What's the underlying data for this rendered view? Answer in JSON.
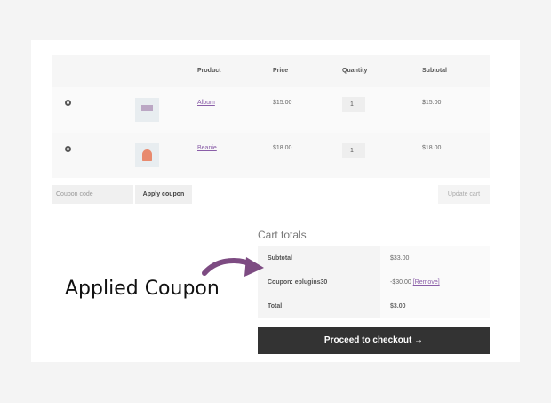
{
  "cart": {
    "headers": [
      "Product",
      "Price",
      "Quantity",
      "Subtotal"
    ],
    "items": [
      {
        "name": "Album",
        "price": "$15.00",
        "qty": "1",
        "subtotal": "$15.00"
      },
      {
        "name": "Beanie",
        "price": "$18.00",
        "qty": "1",
        "subtotal": "$18.00"
      }
    ],
    "coupon_placeholder": "Coupon code",
    "apply_label": "Apply coupon",
    "update_label": "Update cart"
  },
  "totals": {
    "title": "Cart totals",
    "subtotal_label": "Subtotal",
    "subtotal": "$33.00",
    "coupon_label": "Coupon: eplugins30",
    "coupon_value": "-$30.00",
    "remove_label": "[Remove]",
    "total_label": "Total",
    "total": "$3.00",
    "checkout_label": "Proceed to checkout →"
  },
  "annotation": {
    "text": "Applied Coupon",
    "arrow_color": "#7d4b82"
  }
}
